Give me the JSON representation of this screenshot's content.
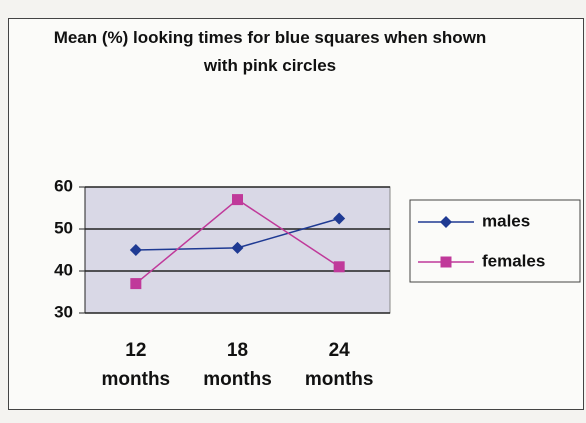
{
  "chart_data": {
    "type": "line",
    "title": "Mean (%) looking times for blue squares when shown with pink circles",
    "categories": [
      "12 months",
      "18 months",
      "24 months"
    ],
    "series": [
      {
        "name": "males",
        "color": "#1f3a93",
        "values": [
          45,
          45.5,
          52.5
        ]
      },
      {
        "name": "females",
        "color": "#c0399a",
        "values": [
          37,
          57,
          41
        ]
      }
    ],
    "ylim": [
      30,
      60
    ],
    "yticks": [
      30,
      40,
      50,
      60
    ],
    "grid": true,
    "legend": "right"
  }
}
